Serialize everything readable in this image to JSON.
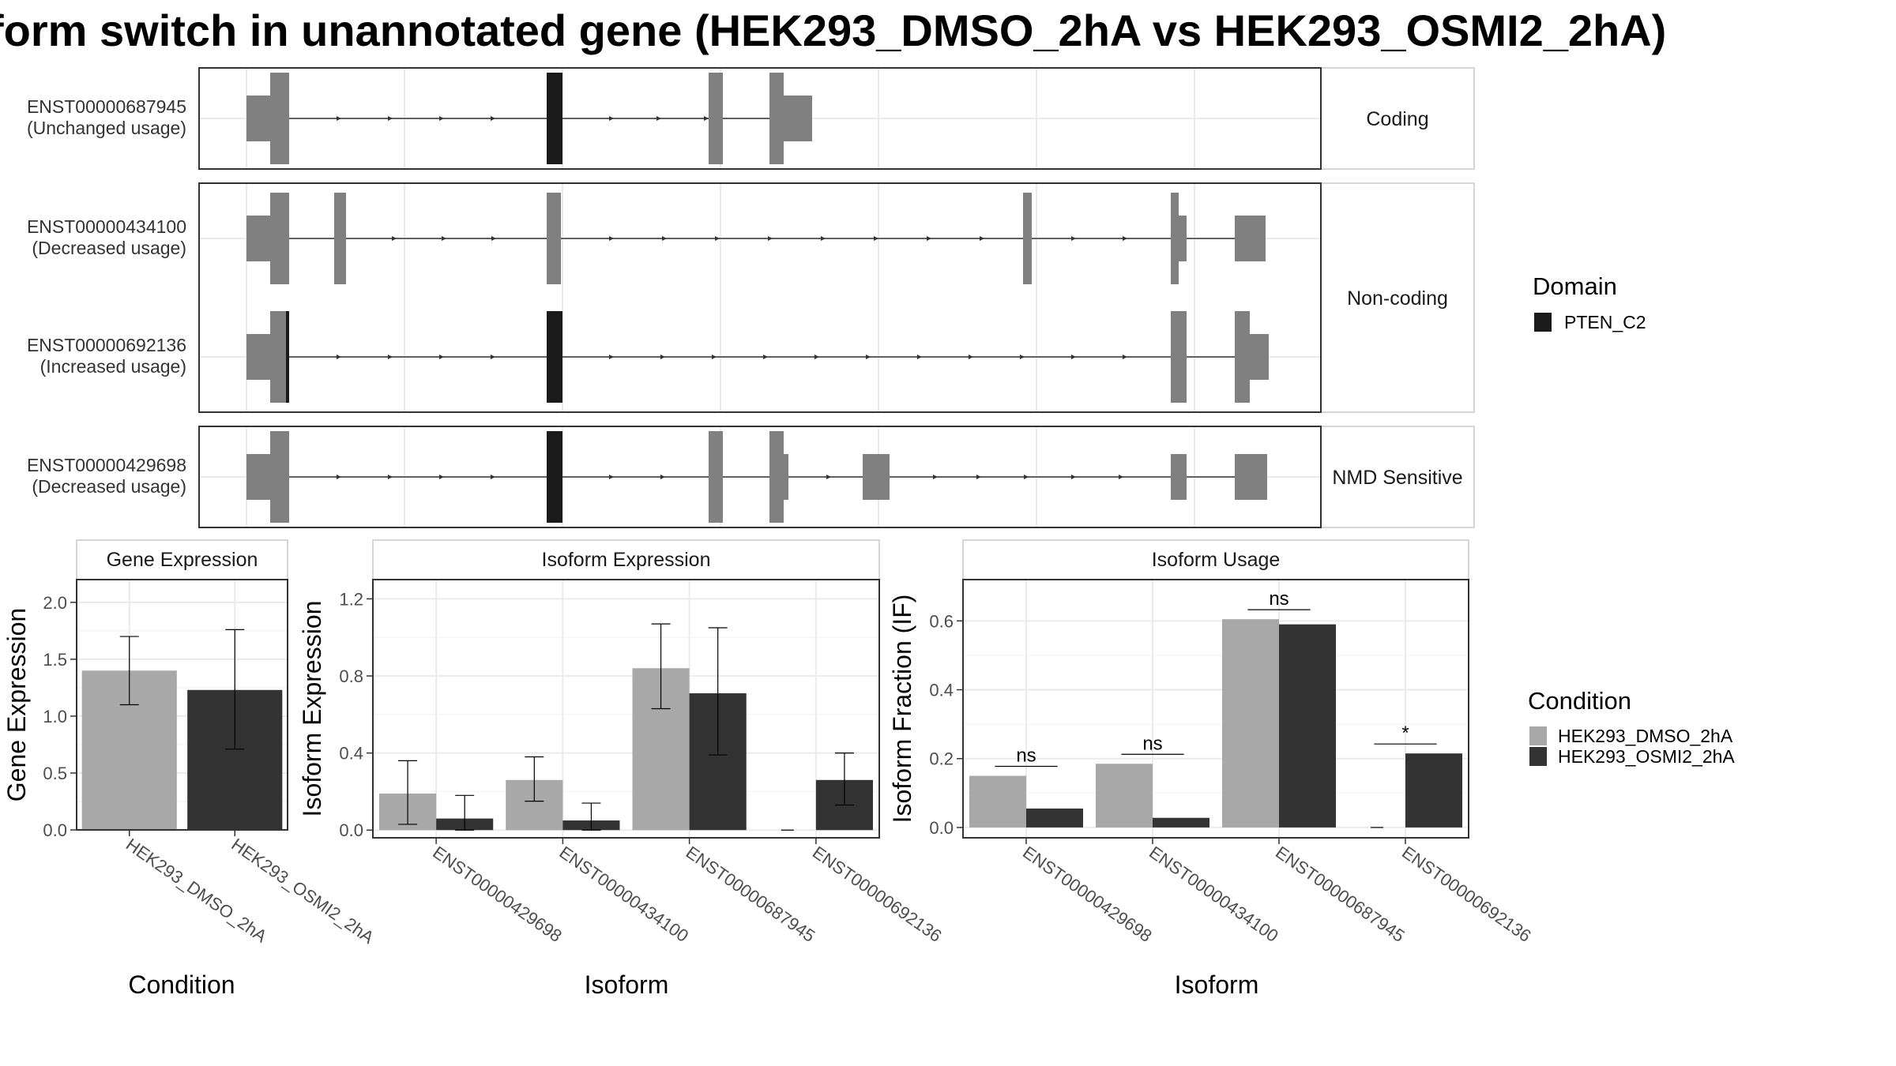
{
  "title": "form switch in unannotated gene (HEK293_DMSO_2hA vs HEK293_OSMI2_2hA)",
  "colors": {
    "exon": "#808080",
    "domain": "#1a1a1a",
    "cond1": "#a8a8a8",
    "cond2": "#333333",
    "grid": "#ebebeb",
    "strip_bg": "#ffffff",
    "panel_border": "#333333",
    "strip_border": "#c8c8c8"
  },
  "transcripts": {
    "groups": [
      {
        "label": "Coding",
        "rows": [
          {
            "id": "ENST00000687945",
            "usage": "(Unchanged usage)"
          }
        ]
      },
      {
        "label": "Non-coding",
        "rows": [
          {
            "id": "ENST00000434100",
            "usage": "(Decreased usage)"
          },
          {
            "id": "ENST00000692136",
            "usage": "(Increased usage)"
          }
        ]
      },
      {
        "label": "NMD Sensitive",
        "rows": [
          {
            "id": "ENST00000429698",
            "usage": "(Decreased usage)"
          }
        ]
      }
    ]
  },
  "legend_domain": {
    "title": "Domain",
    "items": [
      "PTEN_C2"
    ]
  },
  "legend_condition": {
    "title": "Condition",
    "items": [
      "HEK293_DMSO_2hA",
      "HEK293_OSMI2_2hA"
    ]
  },
  "chart_data": [
    {
      "type": "bar",
      "title": "Gene Expression",
      "xlabel": "Condition",
      "ylabel": "Gene Expression",
      "categories": [
        "HEK293_DMSO_2hA",
        "HEK293_OSMI2_2hA"
      ],
      "values": [
        1.4,
        1.23
      ],
      "error_low": [
        1.1,
        0.71
      ],
      "error_high": [
        1.7,
        1.76
      ],
      "ylim": [
        0,
        2.2
      ],
      "yticks": [
        0.0,
        0.5,
        1.0,
        1.5,
        2.0
      ],
      "ytick_labels": [
        "0.0",
        "0.5",
        "1.0",
        "1.5",
        "2.0"
      ]
    },
    {
      "type": "bar",
      "title": "Isoform Expression",
      "xlabel": "Isoform",
      "ylabel": "Isoform Expression",
      "categories": [
        "ENST00000429698",
        "ENST00000434100",
        "ENST00000687945",
        "ENST00000692136"
      ],
      "series": [
        {
          "name": "HEK293_DMSO_2hA",
          "values": [
            0.19,
            0.26,
            0.84,
            0.0
          ],
          "error_low": [
            0.03,
            0.15,
            0.63,
            0.0
          ],
          "error_high": [
            0.36,
            0.38,
            1.07,
            0.0
          ]
        },
        {
          "name": "HEK293_OSMI2_2hA",
          "values": [
            0.06,
            0.05,
            0.71,
            0.26
          ],
          "error_low": [
            0.0,
            0.0,
            0.39,
            0.13
          ],
          "error_high": [
            0.18,
            0.14,
            1.05,
            0.4
          ]
        }
      ],
      "ylim": [
        -0.04,
        1.3
      ],
      "yticks": [
        0.0,
        0.4,
        0.8,
        1.2
      ],
      "ytick_labels": [
        "0.0",
        "0.4",
        "0.8",
        "1.2"
      ]
    },
    {
      "type": "bar",
      "title": "Isoform Usage",
      "xlabel": "Isoform",
      "ylabel": "Isoform Fraction (IF)",
      "categories": [
        "ENST00000429698",
        "ENST00000434100",
        "ENST00000687945",
        "ENST00000692136"
      ],
      "series": [
        {
          "name": "HEK293_DMSO_2hA",
          "values": [
            0.15,
            0.185,
            0.605,
            0.0
          ]
        },
        {
          "name": "HEK293_OSMI2_2hA",
          "values": [
            0.055,
            0.028,
            0.59,
            0.215
          ]
        }
      ],
      "significance": [
        "ns",
        "ns",
        "ns",
        "*"
      ],
      "ylim": [
        -0.03,
        0.72
      ],
      "yticks": [
        0.0,
        0.2,
        0.4,
        0.6
      ],
      "ytick_labels": [
        "0.0",
        "0.2",
        "0.4",
        "0.6"
      ]
    }
  ]
}
